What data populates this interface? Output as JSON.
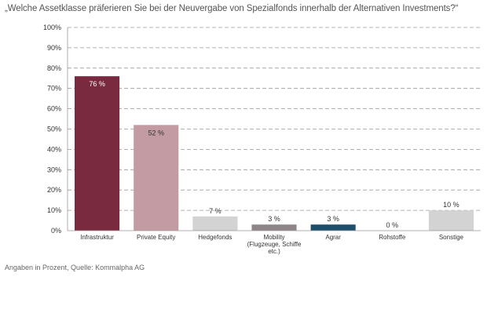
{
  "title": "„Welche Assetklasse präferieren Sie bei der Neuvergabe von Spezialfonds innerhalb der Alternativen Investments?“",
  "source": "Angaben in Prozent, Quelle: Kommalpha AG",
  "chart_data": {
    "type": "bar",
    "categories": [
      [
        "Infrastruktur"
      ],
      [
        "Private Equity"
      ],
      [
        "Hedgefonds"
      ],
      [
        "Mobility",
        "(Flugzeuge, Schiffe",
        "etc.)"
      ],
      [
        "Agrar"
      ],
      [
        "Rohstoffe"
      ],
      [
        "Sonstige"
      ]
    ],
    "values": [
      76,
      52,
      7,
      3,
      3,
      0,
      10
    ],
    "value_labels": [
      "76 %",
      "52 %",
      "7 %",
      "3 %",
      "3 %",
      "0 %",
      "10 %"
    ],
    "colors": [
      "#7a2a3f",
      "#c29ca2",
      "#d3d3d3",
      "#8d8587",
      "#1d4f6b",
      "#d3d3d3",
      "#d3d3d3"
    ],
    "label_colors": [
      "#ffffff",
      "#333333",
      "#333333",
      "#333333",
      "#333333",
      "#333333",
      "#333333"
    ],
    "label_inside": [
      true,
      true,
      false,
      false,
      false,
      false,
      false
    ],
    "yticks": [
      "0%",
      "10%",
      "20%",
      "30%",
      "40%",
      "50%",
      "60%",
      "70%",
      "80%",
      "90%",
      "100%"
    ],
    "ylim": [
      0,
      100
    ],
    "grid": true
  }
}
